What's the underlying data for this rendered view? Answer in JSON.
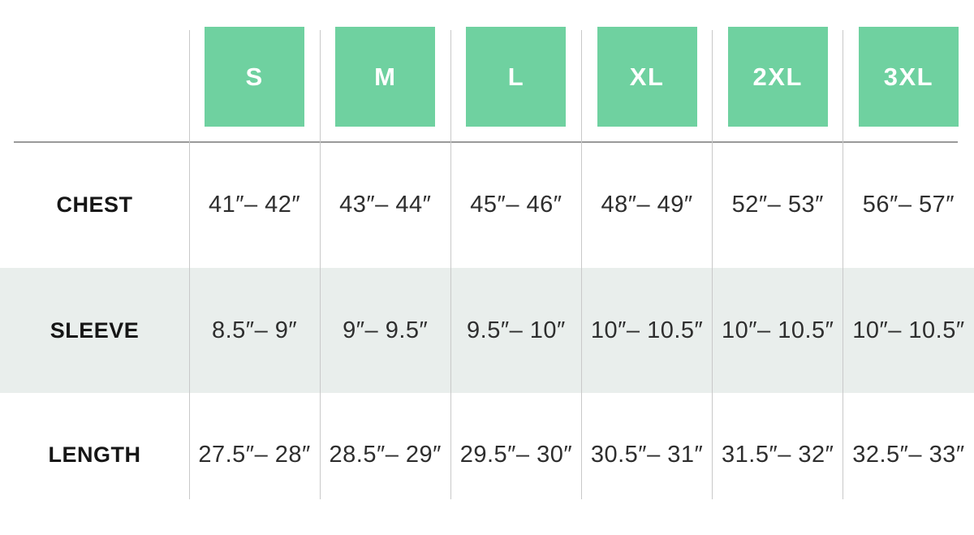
{
  "chart_data": {
    "type": "table",
    "columns": [
      "S",
      "M",
      "L",
      "XL",
      "2XL",
      "3XL"
    ],
    "rows": [
      {
        "label": "CHEST",
        "values": [
          "41″– 42″",
          "43″– 44″",
          "45″– 46″",
          "48″– 49″",
          "52″– 53″",
          "56″– 57″"
        ]
      },
      {
        "label": "SLEEVE",
        "values": [
          "8.5″– 9″",
          "9″– 9.5″",
          "9.5″– 10″",
          "10″– 10.5″",
          "10″– 10.5″",
          "10″– 10.5″"
        ]
      },
      {
        "label": "LENGTH",
        "values": [
          "27.5″– 28″",
          "28.5″– 29″",
          "29.5″– 30″",
          "30.5″– 31″",
          "31.5″– 32″",
          "32.5″– 33″"
        ]
      }
    ]
  },
  "colors": {
    "size_badge_green": "#6fd1a0",
    "badge_text": "#ffffff",
    "alt_row_background": "#e9eeec",
    "column_divider": "#c9c9c9",
    "header_rule": "#9a9a9a",
    "label_text": "#161616",
    "value_text": "#2e2e2e"
  }
}
